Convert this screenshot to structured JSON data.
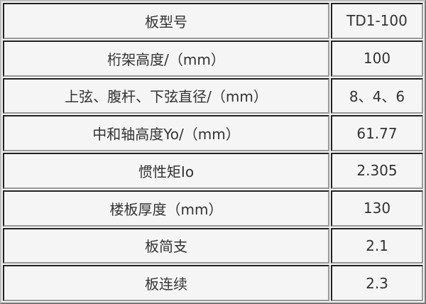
{
  "rows": [
    {
      "label": "板型号",
      "value": "TD1-100"
    },
    {
      "label": "桁架高度/（mm）",
      "value": "100"
    },
    {
      "label": "上弦、腹杆、下弦直径/（mm）",
      "value": "8、4、6"
    },
    {
      "label": "中和轴高度Yo/（mm）",
      "value": "61.77"
    },
    {
      "label": "惯性矩Io",
      "value": "2.305"
    },
    {
      "label": "楼板厚度（mm）",
      "value": "130"
    },
    {
      "label": "板简支",
      "value": "2.1"
    },
    {
      "label": "板连续",
      "value": "2.3"
    }
  ]
}
